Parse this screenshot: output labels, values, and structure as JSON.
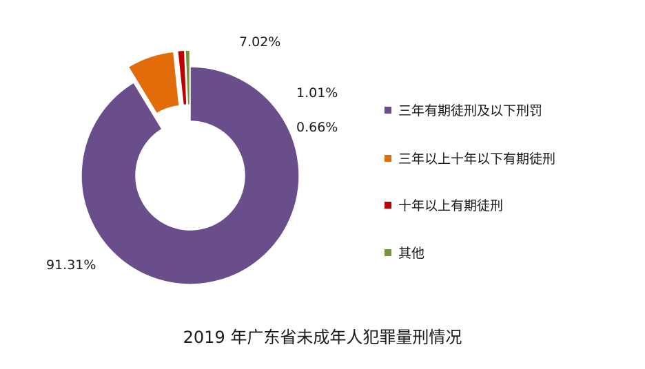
{
  "chart_data": {
    "type": "pie",
    "title": "2019 年广东省未成年人犯罪量刑情况",
    "categories": [
      "三年有期徒刑及以下刑罚",
      "三年以上十年以下有期徒刑",
      "十年以上有期徒刑",
      "其他"
    ],
    "values": [
      91.31,
      7.02,
      1.01,
      0.66
    ],
    "value_labels": [
      "91.31%",
      "7.02%",
      "1.01%",
      "0.66%"
    ],
    "colors": [
      "#6a4e8c",
      "#e36c0a",
      "#c00000",
      "#77933c"
    ],
    "legend_position": "right",
    "donut": true,
    "exploded_slices": [
      "三年以上十年以下有期徒刑",
      "十年以上有期徒刑",
      "其他"
    ]
  }
}
